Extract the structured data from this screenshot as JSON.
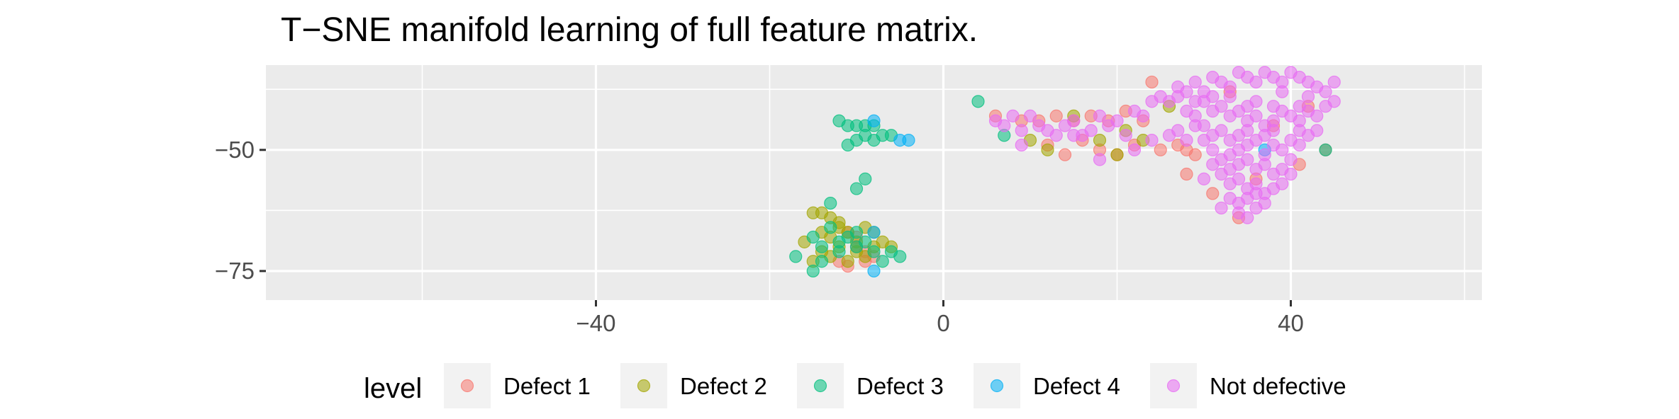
{
  "chart_data": {
    "type": "scatter",
    "title": "T−SNE manifold learning of full feature matrix.",
    "xlabel": "",
    "ylabel": "",
    "xlim": [
      -78,
      62
    ],
    "ylim": [
      -81,
      -32.5
    ],
    "x_ticks": [
      -40,
      0,
      40
    ],
    "x_tick_labels": [
      "−40",
      "0",
      "40"
    ],
    "y_ticks": [
      -50,
      -75
    ],
    "y_tick_labels": [
      "−50",
      "−75"
    ],
    "grid": true,
    "legend": {
      "title": "level",
      "position": "bottom"
    },
    "series": [
      {
        "name": "Defect 1",
        "color": "#F8766D",
        "points": [
          [
            6,
            -43
          ],
          [
            9,
            -44
          ],
          [
            11,
            -44
          ],
          [
            13,
            -43
          ],
          [
            15,
            -44
          ],
          [
            17,
            -43
          ],
          [
            19,
            -44
          ],
          [
            21,
            -42
          ],
          [
            23,
            -44
          ],
          [
            12,
            -49
          ],
          [
            14,
            -51
          ],
          [
            16,
            -48
          ],
          [
            18,
            -50
          ],
          [
            20,
            -51
          ],
          [
            22,
            -49
          ],
          [
            25,
            -50
          ],
          [
            27,
            -49
          ],
          [
            29,
            -51
          ],
          [
            31,
            -59
          ],
          [
            28,
            -55
          ],
          [
            36,
            -56
          ],
          [
            41,
            -53
          ],
          [
            44,
            -50
          ],
          [
            42,
            -41
          ],
          [
            38,
            -45
          ],
          [
            34,
            -64
          ],
          [
            -11,
            -67
          ],
          [
            -10,
            -68
          ],
          [
            -9,
            -71
          ],
          [
            -8,
            -72
          ],
          [
            -12,
            -73
          ],
          [
            -11,
            -74
          ],
          [
            -9,
            -73
          ],
          [
            -10,
            -70
          ],
          [
            24,
            -36
          ],
          [
            33,
            -38
          ],
          [
            28,
            -50
          ]
        ]
      },
      {
        "name": "Defect 2",
        "color": "#A3A500",
        "points": [
          [
            -15,
            -63
          ],
          [
            -14,
            -63
          ],
          [
            -13,
            -64
          ],
          [
            -12,
            -65
          ],
          [
            -14,
            -67
          ],
          [
            -13,
            -68
          ],
          [
            -11,
            -67
          ],
          [
            -9,
            -66
          ],
          [
            -8,
            -67
          ],
          [
            -7,
            -69
          ],
          [
            -6,
            -70
          ],
          [
            -10,
            -69
          ],
          [
            -12,
            -70
          ],
          [
            -14,
            -71
          ],
          [
            -15,
            -73
          ],
          [
            -13,
            -72
          ],
          [
            -11,
            -73
          ],
          [
            -9,
            -72
          ],
          [
            -16,
            -69
          ],
          [
            -12,
            -66
          ],
          [
            10,
            -48
          ],
          [
            12,
            -50
          ],
          [
            18,
            -48
          ],
          [
            21,
            -46
          ],
          [
            20,
            -51
          ],
          [
            23,
            -48
          ],
          [
            15,
            -43
          ],
          [
            26,
            -41
          ],
          [
            -10,
            -71
          ],
          [
            -8,
            -70
          ]
        ]
      },
      {
        "name": "Defect 3",
        "color": "#00BF7D",
        "points": [
          [
            -12,
            -44
          ],
          [
            -11,
            -45
          ],
          [
            -10,
            -45
          ],
          [
            -9,
            -45
          ],
          [
            -8,
            -45
          ],
          [
            -9,
            -47
          ],
          [
            -10,
            -48
          ],
          [
            -11,
            -49
          ],
          [
            -8,
            -48
          ],
          [
            -7,
            -47
          ],
          [
            -6,
            -47
          ],
          [
            -9,
            -56
          ],
          [
            -10,
            -58
          ],
          [
            -13,
            -61
          ],
          [
            -15,
            -68
          ],
          [
            -14,
            -70
          ],
          [
            -12,
            -69
          ],
          [
            -10,
            -70
          ],
          [
            -8,
            -71
          ],
          [
            -6,
            -71
          ],
          [
            -5,
            -72
          ],
          [
            -17,
            -72
          ],
          [
            -15,
            -75
          ],
          [
            -12,
            -71
          ],
          [
            -11,
            -68
          ],
          [
            -13,
            -66
          ],
          [
            -10,
            -67
          ],
          [
            -9,
            -69
          ],
          [
            4,
            -40
          ],
          [
            7,
            -47
          ],
          [
            44,
            -50
          ],
          [
            -14,
            -73
          ],
          [
            -7,
            -73
          ]
        ]
      },
      {
        "name": "Defect 4",
        "color": "#00B0F6",
        "points": [
          [
            -8,
            -44
          ],
          [
            -5,
            -48
          ],
          [
            -4,
            -48
          ],
          [
            -8,
            -75
          ],
          [
            -8,
            -67
          ],
          [
            37,
            -50
          ]
        ]
      },
      {
        "name": "Not defective",
        "color": "#E76BF3",
        "points": [
          [
            6,
            -44
          ],
          [
            7,
            -45
          ],
          [
            8,
            -43
          ],
          [
            9,
            -46
          ],
          [
            10,
            -43
          ],
          [
            11,
            -45
          ],
          [
            12,
            -46
          ],
          [
            13,
            -47
          ],
          [
            14,
            -45
          ],
          [
            15,
            -44
          ],
          [
            16,
            -47
          ],
          [
            17,
            -46
          ],
          [
            18,
            -43
          ],
          [
            19,
            -45
          ],
          [
            20,
            -44
          ],
          [
            21,
            -47
          ],
          [
            22,
            -42
          ],
          [
            23,
            -43
          ],
          [
            24,
            -40
          ],
          [
            25,
            -39
          ],
          [
            26,
            -40
          ],
          [
            27,
            -37
          ],
          [
            28,
            -38
          ],
          [
            29,
            -36
          ],
          [
            30,
            -38
          ],
          [
            31,
            -35
          ],
          [
            32,
            -36
          ],
          [
            33,
            -37
          ],
          [
            34,
            -34
          ],
          [
            35,
            -35
          ],
          [
            36,
            -36
          ],
          [
            37,
            -34
          ],
          [
            38,
            -35
          ],
          [
            39,
            -36
          ],
          [
            40,
            -34
          ],
          [
            41,
            -35
          ],
          [
            42,
            -36
          ],
          [
            43,
            -37
          ],
          [
            44,
            -38
          ],
          [
            45,
            -36
          ],
          [
            30,
            -40
          ],
          [
            31,
            -42
          ],
          [
            32,
            -41
          ],
          [
            33,
            -43
          ],
          [
            34,
            -42
          ],
          [
            35,
            -44
          ],
          [
            36,
            -43
          ],
          [
            37,
            -45
          ],
          [
            38,
            -44
          ],
          [
            39,
            -42
          ],
          [
            40,
            -43
          ],
          [
            41,
            -44
          ],
          [
            42,
            -42
          ],
          [
            43,
            -43
          ],
          [
            44,
            -41
          ],
          [
            29,
            -43
          ],
          [
            30,
            -45
          ],
          [
            31,
            -47
          ],
          [
            32,
            -46
          ],
          [
            33,
            -48
          ],
          [
            34,
            -47
          ],
          [
            35,
            -49
          ],
          [
            36,
            -48
          ],
          [
            37,
            -47
          ],
          [
            38,
            -49
          ],
          [
            39,
            -50
          ],
          [
            40,
            -48
          ],
          [
            41,
            -49
          ],
          [
            42,
            -47
          ],
          [
            43,
            -46
          ],
          [
            31,
            -50
          ],
          [
            32,
            -52
          ],
          [
            33,
            -51
          ],
          [
            34,
            -53
          ],
          [
            35,
            -52
          ],
          [
            36,
            -54
          ],
          [
            37,
            -53
          ],
          [
            38,
            -55
          ],
          [
            39,
            -54
          ],
          [
            40,
            -52
          ],
          [
            32,
            -55
          ],
          [
            33,
            -57
          ],
          [
            34,
            -56
          ],
          [
            35,
            -58
          ],
          [
            36,
            -57
          ],
          [
            37,
            -59
          ],
          [
            38,
            -58
          ],
          [
            39,
            -57
          ],
          [
            33,
            -60
          ],
          [
            34,
            -61
          ],
          [
            35,
            -60
          ],
          [
            36,
            -62
          ],
          [
            37,
            -61
          ],
          [
            34,
            -63
          ],
          [
            35,
            -64
          ],
          [
            32,
            -62
          ],
          [
            26,
            -47
          ],
          [
            27,
            -46
          ],
          [
            28,
            -48
          ],
          [
            24,
            -48
          ],
          [
            22,
            -50
          ],
          [
            18,
            -52
          ],
          [
            15,
            -47
          ],
          [
            9,
            -49
          ],
          [
            28,
            -42
          ],
          [
            29,
            -40
          ],
          [
            27,
            -39
          ],
          [
            33,
            -39
          ],
          [
            36,
            -40
          ],
          [
            39,
            -38
          ],
          [
            42,
            -39
          ],
          [
            45,
            -40
          ],
          [
            31,
            -39
          ],
          [
            35,
            -41
          ],
          [
            38,
            -41
          ],
          [
            41,
            -41
          ],
          [
            30,
            -48
          ],
          [
            29,
            -45
          ],
          [
            35,
            -46
          ],
          [
            38,
            -46
          ],
          [
            41,
            -46
          ],
          [
            34,
            -50
          ],
          [
            37,
            -51
          ],
          [
            40,
            -55
          ],
          [
            31,
            -53
          ],
          [
            30,
            -56
          ],
          [
            36,
            -59
          ],
          [
            33,
            -54
          ]
        ]
      }
    ]
  }
}
